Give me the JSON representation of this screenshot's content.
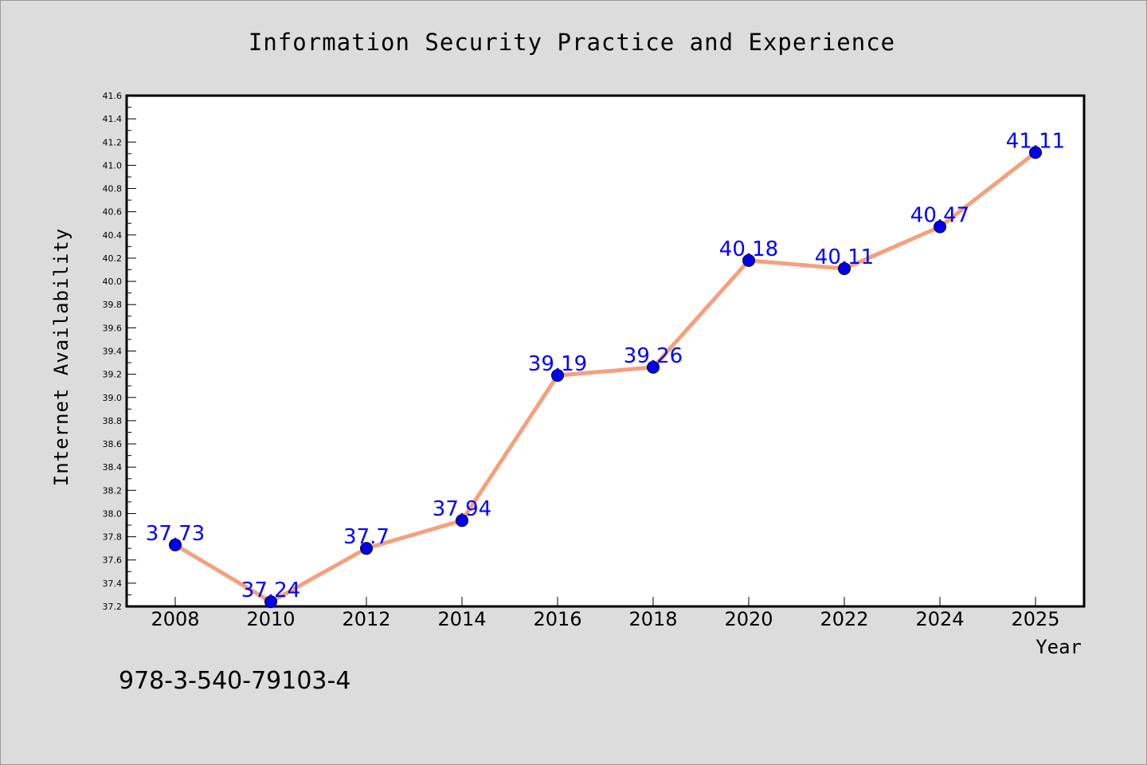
{
  "chart_data": {
    "type": "line",
    "title": "Information Security Practice and Experience",
    "xlabel": "Year",
    "ylabel": "Internet Availability",
    "x": [
      "2008",
      "2010",
      "2012",
      "2014",
      "2016",
      "2018",
      "2020",
      "2022",
      "2024",
      "2025"
    ],
    "series": [
      {
        "values": [
          37.73,
          37.24,
          37.7,
          37.94,
          39.19,
          39.26,
          40.18,
          40.11,
          40.47,
          41.11
        ]
      }
    ],
    "data_labels": [
      "37.73",
      "37.24",
      "37.7",
      "37.94",
      "39.19",
      "39.26",
      "40.18",
      "40.11",
      "40.47",
      "41.11"
    ],
    "y_ticks": [
      "37.2",
      "37.4",
      "37.6",
      "37.8",
      "38.0",
      "38.2",
      "38.4",
      "38.6",
      "38.8",
      "39.0",
      "39.2",
      "39.4",
      "39.6",
      "39.8",
      "40.0",
      "40.2",
      "40.4",
      "40.6",
      "40.8",
      "41.0",
      "41.2",
      "41.4",
      "41.6"
    ],
    "ylim": [
      37.2,
      41.6
    ],
    "grid": false,
    "legend": "none",
    "colors": {
      "line": "#f4a07e",
      "marker": "#0000ee",
      "label": "#0000ff",
      "plot_bg": "#ffffff",
      "figure_bg": "#dcdcdc"
    }
  },
  "footer_text": "978-3-540-79103-4"
}
